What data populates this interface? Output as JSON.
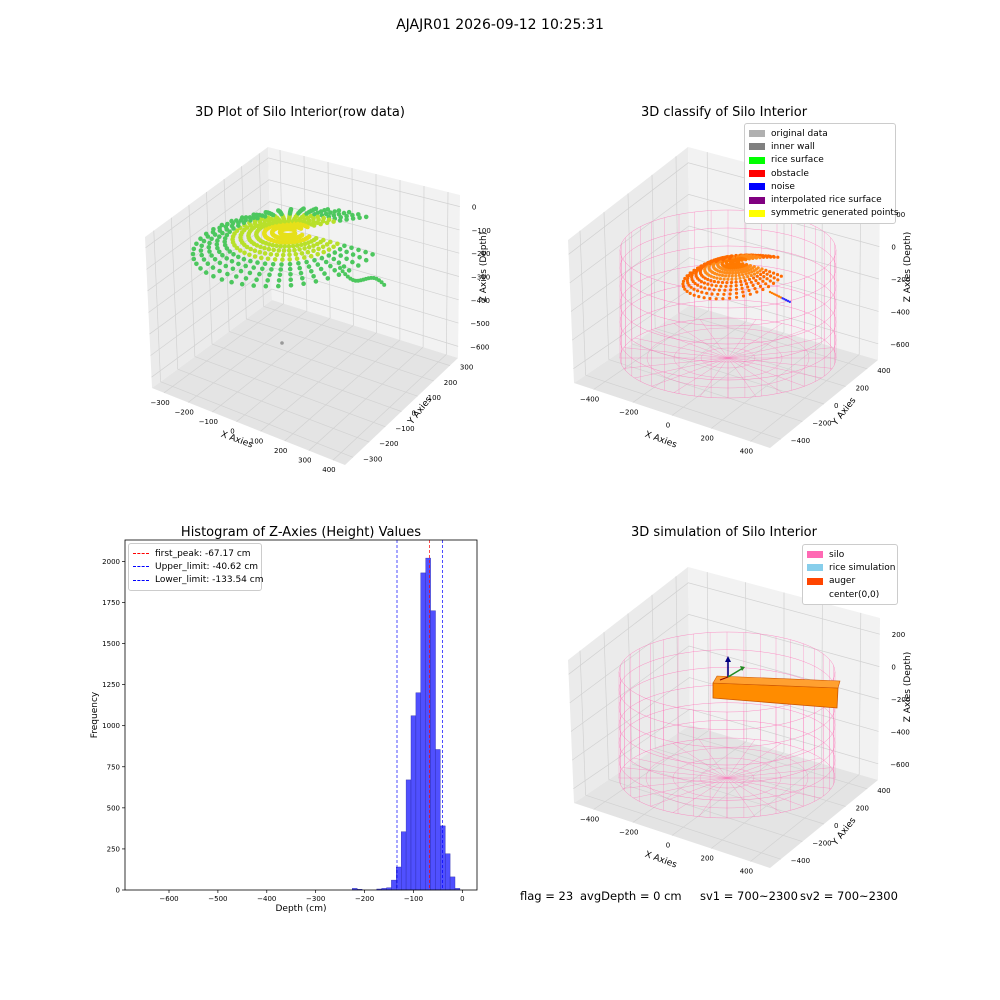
{
  "header": {
    "title": "AJAJR01 2026-09-12 10:25:31"
  },
  "status": {
    "flag": "flag = 23",
    "avg_depth": "avgDepth = 0 cm",
    "sv1": "sv1 = 700~2300",
    "sv2": "sv2 = 700~2300"
  },
  "chart_data": [
    {
      "type": "scatter",
      "projection": "3d",
      "title": "3D Plot of Silo Interior(row data)",
      "xlabel": "X Axies",
      "ylabel": "Y Axies",
      "zlabel": "Z Axies (Depth)",
      "xticks": [
        "−300",
        "−200",
        "−100",
        "0",
        "100",
        "200",
        "300",
        "400"
      ],
      "yticks": [
        "−300",
        "−200",
        "−100",
        "0",
        "100",
        "200",
        "300"
      ],
      "zticks": [
        "0",
        "−100",
        "−200",
        "−300",
        "−400",
        "−500",
        "−600"
      ],
      "xlim": [
        -300,
        400
      ],
      "ylim": [
        -300,
        300
      ],
      "zlim": [
        -600,
        0
      ],
      "colormap": [
        "#e6e01a",
        "#b8e02a",
        "#4cc75e"
      ],
      "grid": true
    },
    {
      "type": "scatter",
      "projection": "3d",
      "title": "3D classify of Silo Interior",
      "xlabel": "X Axies",
      "ylabel": "Y Axies",
      "zlabel": "Z Axies (Depth)",
      "xticks": [
        "−400",
        "−200",
        "0",
        "200",
        "400"
      ],
      "yticks": [
        "−400",
        "−200",
        "0",
        "200",
        "400"
      ],
      "zticks": [
        "200",
        "0",
        "−200",
        "−400",
        "−600"
      ],
      "legend": [
        {
          "label": "original data",
          "color": "#b0b0b0"
        },
        {
          "label": "inner wall",
          "color": "#808080"
        },
        {
          "label": "rice surface",
          "color": "#00ff00"
        },
        {
          "label": "obstacle",
          "color": "#ff0000"
        },
        {
          "label": "noise",
          "color": "#0000ff"
        },
        {
          "label": "interpolated rice surface",
          "color": "#800080"
        },
        {
          "label": "symmetric generated points",
          "color": "#ffff00"
        }
      ],
      "legend_loc": "upper right",
      "grid": true
    },
    {
      "type": "bar",
      "title": "Histogram of Z-Axies (Height) Values",
      "xlabel": "Depth (cm)",
      "ylabel": "Frequency",
      "xticks": [
        "−600",
        "−500",
        "−400",
        "−300",
        "−200",
        "−100",
        "0"
      ],
      "yticks": [
        "0",
        "250",
        "500",
        "750",
        "1000",
        "1250",
        "1500",
        "1750",
        "2000"
      ],
      "xlim": [
        -690,
        30
      ],
      "ylim": [
        0,
        2130
      ],
      "bar_color": "#5050ff",
      "bins": [
        {
          "x0": -225,
          "x1": -215,
          "value": 10
        },
        {
          "x0": -215,
          "x1": -205,
          "value": 4
        },
        {
          "x0": -175,
          "x1": -165,
          "value": 6
        },
        {
          "x0": -165,
          "x1": -155,
          "value": 10
        },
        {
          "x0": -155,
          "x1": -145,
          "value": 14
        },
        {
          "x0": -145,
          "x1": -135,
          "value": 60
        },
        {
          "x0": -135,
          "x1": -125,
          "value": 140
        },
        {
          "x0": -125,
          "x1": -115,
          "value": 355
        },
        {
          "x0": -115,
          "x1": -105,
          "value": 670
        },
        {
          "x0": -105,
          "x1": -95,
          "value": 1060
        },
        {
          "x0": -95,
          "x1": -85,
          "value": 1200
        },
        {
          "x0": -85,
          "x1": -75,
          "value": 1930
        },
        {
          "x0": -75,
          "x1": -65,
          "value": 2020
        },
        {
          "x0": -65,
          "x1": -55,
          "value": 1700
        },
        {
          "x0": -55,
          "x1": -45,
          "value": 855
        },
        {
          "x0": -45,
          "x1": -35,
          "value": 390
        },
        {
          "x0": -35,
          "x1": -25,
          "value": 220
        },
        {
          "x0": -25,
          "x1": -15,
          "value": 80
        },
        {
          "x0": -15,
          "x1": -5,
          "value": 10
        }
      ],
      "vlines": [
        {
          "label": "first_peak: -67.17 cm",
          "x": -67.17,
          "color": "#ff0000"
        },
        {
          "label": "Upper_limit: -40.62 cm",
          "x": -40.62,
          "color": "#0000ff"
        },
        {
          "label": "Lower_limit: -133.54 cm",
          "x": -133.54,
          "color": "#0000ff"
        }
      ],
      "legend_loc": "upper left",
      "grid": false
    },
    {
      "type": "other",
      "projection": "3d",
      "title": "3D simulation of Silo Interior",
      "xlabel": "X Axies",
      "ylabel": "Y Axies",
      "zlabel": "Z Axies (Depth)",
      "xticks": [
        "−400",
        "−200",
        "0",
        "200",
        "400"
      ],
      "yticks": [
        "−400",
        "−200",
        "0",
        "200",
        "400"
      ],
      "zticks": [
        "200",
        "0",
        "−200",
        "−400",
        "−600"
      ],
      "legend": [
        {
          "label": "silo",
          "color": "#ff69b4"
        },
        {
          "label": "rice simulation",
          "color": "#87ceeb"
        },
        {
          "label": "auger",
          "color": "#ff4500"
        },
        {
          "label": "center(0,0)",
          "color": "#ffffff"
        }
      ],
      "legend_loc": "upper right",
      "grid": true
    }
  ]
}
